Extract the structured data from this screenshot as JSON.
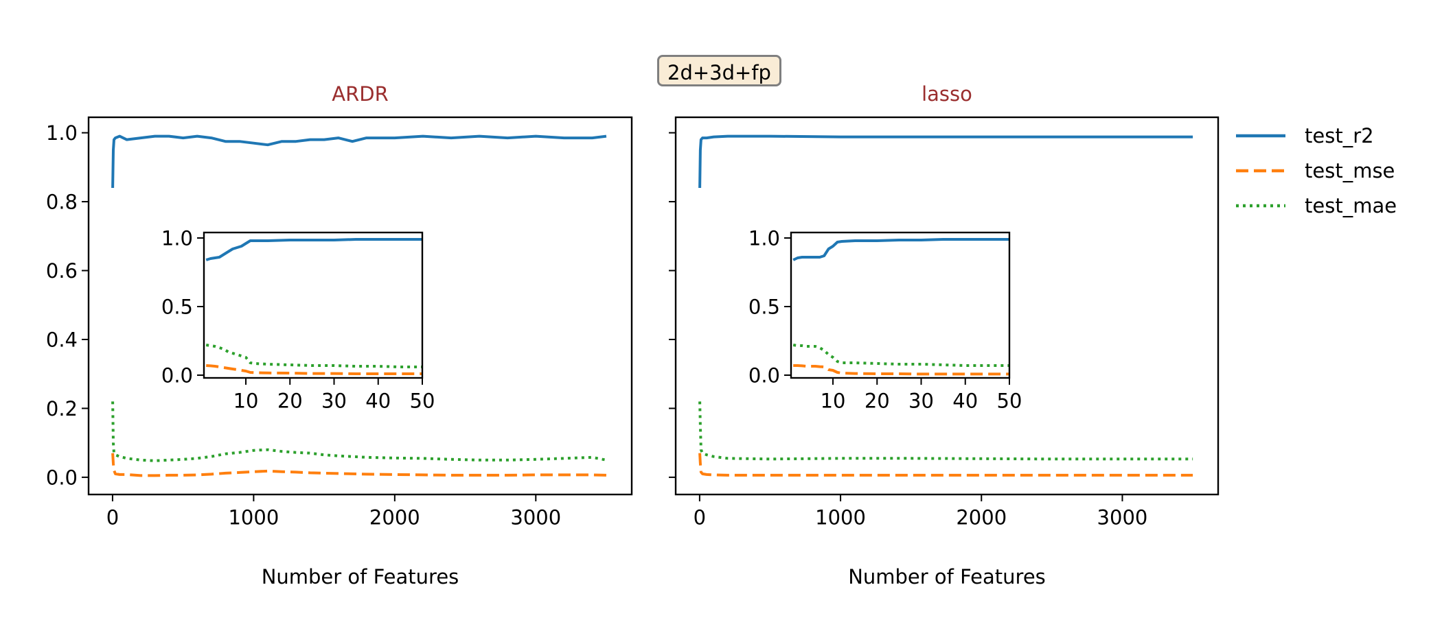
{
  "suptitle": "2d+3d+fp",
  "colors": {
    "r2": "#1f77b4",
    "mse": "#ff7f0e",
    "mae": "#2ca02c",
    "title": "#9a2e2e",
    "suptitle_bg": "#f9ecd6",
    "suptitle_border": "#7f7f7f"
  },
  "legend": {
    "placement": "outside-right",
    "entries": [
      {
        "name": "test_r2",
        "style": "solid"
      },
      {
        "name": "test_mse",
        "style": "dashed"
      },
      {
        "name": "test_mae",
        "style": "dotted"
      }
    ]
  },
  "chart_data": [
    {
      "type": "line",
      "title": "ARDR",
      "xlabel": "Number of Features",
      "ylabel": "",
      "xlim": [
        -170,
        3680
      ],
      "ylim": [
        -0.05,
        1.045
      ],
      "xticks": [
        0,
        1000,
        2000,
        3000
      ],
      "yticks": [
        0.0,
        0.2,
        0.4,
        0.6,
        0.8,
        1.0
      ],
      "ytick_labels": [
        "0.0",
        "0.2",
        "0.4",
        "0.6",
        "0.8",
        "1.0"
      ],
      "grid": false,
      "series": [
        {
          "name": "test_r2",
          "x": [
            1,
            5,
            10,
            20,
            50,
            100,
            200,
            300,
            400,
            500,
            600,
            700,
            800,
            900,
            1000,
            1100,
            1200,
            1300,
            1400,
            1500,
            1600,
            1700,
            1800,
            2000,
            2200,
            2400,
            2600,
            2800,
            3000,
            3200,
            3400,
            3500
          ],
          "y": [
            0.84,
            0.95,
            0.98,
            0.985,
            0.99,
            0.98,
            0.985,
            0.99,
            0.99,
            0.985,
            0.99,
            0.985,
            0.975,
            0.975,
            0.97,
            0.965,
            0.975,
            0.975,
            0.98,
            0.98,
            0.985,
            0.975,
            0.985,
            0.985,
            0.99,
            0.985,
            0.99,
            0.985,
            0.99,
            0.985,
            0.985,
            0.99
          ]
        },
        {
          "name": "test_mse",
          "x": [
            1,
            5,
            10,
            20,
            50,
            100,
            200,
            300,
            400,
            500,
            600,
            700,
            800,
            900,
            1000,
            1100,
            1200,
            1300,
            1400,
            1500,
            1600,
            1700,
            1800,
            2000,
            2200,
            2400,
            2600,
            2800,
            3000,
            3200,
            3400,
            3500
          ],
          "y": [
            0.07,
            0.04,
            0.02,
            0.01,
            0.008,
            0.008,
            0.005,
            0.005,
            0.006,
            0.006,
            0.007,
            0.009,
            0.012,
            0.014,
            0.016,
            0.018,
            0.016,
            0.015,
            0.013,
            0.012,
            0.011,
            0.01,
            0.009,
            0.008,
            0.007,
            0.006,
            0.006,
            0.006,
            0.007,
            0.007,
            0.007,
            0.006
          ]
        },
        {
          "name": "test_mae",
          "x": [
            1,
            5,
            10,
            20,
            50,
            100,
            200,
            300,
            400,
            500,
            600,
            700,
            800,
            900,
            1000,
            1100,
            1200,
            1300,
            1400,
            1500,
            1600,
            1700,
            1800,
            2000,
            2200,
            2400,
            2600,
            2800,
            3000,
            3200,
            3400,
            3500
          ],
          "y": [
            0.22,
            0.1,
            0.07,
            0.065,
            0.06,
            0.055,
            0.05,
            0.048,
            0.05,
            0.052,
            0.055,
            0.06,
            0.068,
            0.072,
            0.078,
            0.08,
            0.075,
            0.072,
            0.07,
            0.065,
            0.062,
            0.06,
            0.058,
            0.056,
            0.055,
            0.052,
            0.05,
            0.05,
            0.052,
            0.055,
            0.058,
            0.05
          ]
        }
      ],
      "inset": {
        "xlim": [
          0.5,
          50
        ],
        "ylim": [
          -0.02,
          1.04
        ],
        "xticks": [
          10,
          20,
          30,
          40,
          50
        ],
        "yticks": [
          0.0,
          0.5,
          1.0
        ],
        "ytick_labels": [
          "0.0",
          "0.5",
          "1.0"
        ],
        "series": [
          {
            "name": "test_r2",
            "x": [
              1,
              2,
              3,
              4,
              5,
              6,
              7,
              8,
              9,
              10,
              11,
              12,
              15,
              20,
              25,
              30,
              35,
              40,
              45,
              50
            ],
            "y": [
              0.84,
              0.85,
              0.855,
              0.86,
              0.88,
              0.9,
              0.92,
              0.93,
              0.94,
              0.96,
              0.98,
              0.98,
              0.98,
              0.985,
              0.985,
              0.985,
              0.99,
              0.99,
              0.99,
              0.99
            ]
          },
          {
            "name": "test_mse",
            "x": [
              1,
              2,
              3,
              4,
              5,
              6,
              7,
              8,
              9,
              10,
              11,
              12,
              15,
              20,
              25,
              30,
              35,
              40,
              45,
              50
            ],
            "y": [
              0.07,
              0.068,
              0.065,
              0.06,
              0.055,
              0.05,
              0.045,
              0.04,
              0.035,
              0.03,
              0.02,
              0.018,
              0.016,
              0.015,
              0.012,
              0.012,
              0.01,
              0.01,
              0.01,
              0.01
            ]
          },
          {
            "name": "test_mae",
            "x": [
              1,
              2,
              3,
              4,
              5,
              6,
              7,
              8,
              9,
              10,
              11,
              12,
              15,
              20,
              25,
              30,
              35,
              40,
              45,
              50
            ],
            "y": [
              0.22,
              0.215,
              0.21,
              0.2,
              0.19,
              0.17,
              0.16,
              0.15,
              0.14,
              0.13,
              0.09,
              0.085,
              0.08,
              0.075,
              0.07,
              0.07,
              0.065,
              0.065,
              0.06,
              0.06
            ]
          }
        ]
      }
    },
    {
      "type": "line",
      "title": "lasso",
      "xlabel": "Number of Features",
      "ylabel": "",
      "xlim": [
        -170,
        3680
      ],
      "ylim": [
        -0.05,
        1.045
      ],
      "xticks": [
        0,
        1000,
        2000,
        3000
      ],
      "yticks": [
        0.0,
        0.2,
        0.4,
        0.6,
        0.8,
        1.0
      ],
      "ytick_labels": [
        "",
        "",
        "",
        "",
        "",
        ""
      ],
      "grid": false,
      "series": [
        {
          "name": "test_r2",
          "x": [
            1,
            5,
            10,
            20,
            50,
            100,
            200,
            500,
            1000,
            1500,
            2000,
            2500,
            3000,
            3500
          ],
          "y": [
            0.84,
            0.95,
            0.98,
            0.985,
            0.985,
            0.988,
            0.99,
            0.99,
            0.988,
            0.988,
            0.988,
            0.988,
            0.988,
            0.988
          ]
        },
        {
          "name": "test_mse",
          "x": [
            1,
            5,
            10,
            20,
            50,
            100,
            200,
            500,
            1000,
            1500,
            2000,
            2500,
            3000,
            3500
          ],
          "y": [
            0.07,
            0.04,
            0.015,
            0.01,
            0.008,
            0.007,
            0.006,
            0.006,
            0.006,
            0.006,
            0.006,
            0.006,
            0.006,
            0.006
          ]
        },
        {
          "name": "test_mae",
          "x": [
            1,
            5,
            10,
            20,
            50,
            100,
            200,
            500,
            1000,
            1500,
            2000,
            2500,
            3000,
            3500
          ],
          "y": [
            0.22,
            0.15,
            0.08,
            0.07,
            0.065,
            0.06,
            0.055,
            0.053,
            0.055,
            0.055,
            0.054,
            0.053,
            0.053,
            0.053
          ]
        }
      ],
      "inset": {
        "xlim": [
          0.5,
          50
        ],
        "ylim": [
          -0.02,
          1.04
        ],
        "xticks": [
          10,
          20,
          30,
          40,
          50
        ],
        "yticks": [
          0.0,
          0.5,
          1.0
        ],
        "ytick_labels": [
          "0.0",
          "0.5",
          "1.0"
        ],
        "series": [
          {
            "name": "test_r2",
            "x": [
              1,
              2,
              3,
              4,
              5,
              6,
              7,
              8,
              9,
              10,
              11,
              12,
              15,
              20,
              25,
              30,
              35,
              40,
              45,
              50
            ],
            "y": [
              0.84,
              0.855,
              0.86,
              0.86,
              0.86,
              0.86,
              0.86,
              0.87,
              0.92,
              0.94,
              0.97,
              0.975,
              0.98,
              0.98,
              0.985,
              0.985,
              0.99,
              0.99,
              0.99,
              0.99
            ]
          },
          {
            "name": "test_mse",
            "x": [
              1,
              2,
              3,
              4,
              5,
              6,
              7,
              8,
              9,
              10,
              11,
              12,
              15,
              20,
              25,
              30,
              35,
              40,
              45,
              50
            ],
            "y": [
              0.07,
              0.07,
              0.068,
              0.065,
              0.065,
              0.065,
              0.062,
              0.06,
              0.04,
              0.035,
              0.02,
              0.015,
              0.012,
              0.01,
              0.01,
              0.008,
              0.008,
              0.008,
              0.008,
              0.008
            ]
          },
          {
            "name": "test_mae",
            "x": [
              1,
              2,
              3,
              4,
              5,
              6,
              7,
              8,
              9,
              10,
              11,
              12,
              15,
              20,
              25,
              30,
              35,
              40,
              45,
              50
            ],
            "y": [
              0.22,
              0.215,
              0.215,
              0.21,
              0.21,
              0.21,
              0.2,
              0.18,
              0.15,
              0.13,
              0.1,
              0.09,
              0.09,
              0.085,
              0.08,
              0.08,
              0.075,
              0.07,
              0.07,
              0.07
            ]
          }
        ]
      }
    }
  ]
}
